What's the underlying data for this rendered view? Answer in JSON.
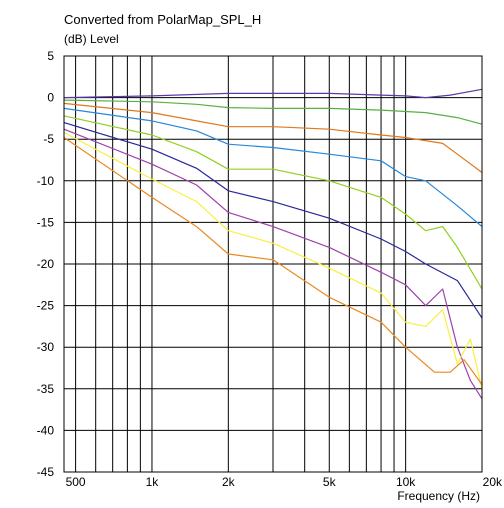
{
  "chart_data": {
    "type": "line",
    "title": "Converted from PolarMap_SPL_H",
    "ylabel": "(dB)  Level",
    "xlabel": "Frequency  (Hz)",
    "x_scale": "log",
    "xlim": [
      450,
      20000
    ],
    "ylim": [
      -45,
      5
    ],
    "y_ticks": [
      5,
      0,
      -5,
      -10,
      -15,
      -20,
      -25,
      -30,
      -35,
      -40,
      -45
    ],
    "x_tick_labels": [
      {
        "value": 500,
        "label": "500"
      },
      {
        "value": 1000,
        "label": "1k"
      },
      {
        "value": 2000,
        "label": "2k"
      },
      {
        "value": 5000,
        "label": "5k"
      },
      {
        "value": 10000,
        "label": "10k"
      },
      {
        "value": 20000,
        "label": "20k"
      }
    ],
    "grid": true,
    "series": [
      {
        "color": "#5a3aa8",
        "points": [
          [
            450,
            0
          ],
          [
            1000,
            0.2
          ],
          [
            2000,
            0.5
          ],
          [
            5000,
            0.5
          ],
          [
            8000,
            0.3
          ],
          [
            10000,
            0.2
          ],
          [
            12000,
            0
          ],
          [
            15000,
            0.3
          ],
          [
            20000,
            1
          ]
        ]
      },
      {
        "color": "#58b040",
        "points": [
          [
            450,
            -0.3
          ],
          [
            1000,
            -0.5
          ],
          [
            1500,
            -0.8
          ],
          [
            2000,
            -1.2
          ],
          [
            3000,
            -1.3
          ],
          [
            5000,
            -1.3
          ],
          [
            8000,
            -1.5
          ],
          [
            12000,
            -1.8
          ],
          [
            16000,
            -2.4
          ],
          [
            20000,
            -3.2
          ]
        ]
      },
      {
        "color": "#e07820",
        "points": [
          [
            450,
            -0.7
          ],
          [
            1000,
            -1.8
          ],
          [
            1500,
            -2.8
          ],
          [
            2000,
            -3.5
          ],
          [
            3000,
            -3.5
          ],
          [
            5000,
            -3.8
          ],
          [
            8000,
            -4.5
          ],
          [
            10000,
            -4.8
          ],
          [
            14000,
            -5.5
          ],
          [
            16000,
            -6.8
          ],
          [
            20000,
            -9
          ]
        ]
      },
      {
        "color": "#2888d8",
        "points": [
          [
            450,
            -1.3
          ],
          [
            1000,
            -2.8
          ],
          [
            1500,
            -4
          ],
          [
            2000,
            -5.6
          ],
          [
            3000,
            -6
          ],
          [
            5000,
            -6.8
          ],
          [
            8000,
            -7.6
          ],
          [
            10000,
            -9.5
          ],
          [
            12000,
            -10
          ],
          [
            16000,
            -13
          ],
          [
            20000,
            -15.5
          ]
        ]
      },
      {
        "color": "#90d020",
        "points": [
          [
            450,
            -2.2
          ],
          [
            1000,
            -4.5
          ],
          [
            1500,
            -6.5
          ],
          [
            2000,
            -8.6
          ],
          [
            3000,
            -8.6
          ],
          [
            5000,
            -10
          ],
          [
            8000,
            -12
          ],
          [
            10000,
            -14
          ],
          [
            12000,
            -16
          ],
          [
            14000,
            -15.5
          ],
          [
            16000,
            -18
          ],
          [
            20000,
            -23
          ]
        ]
      },
      {
        "color": "#282898",
        "points": [
          [
            450,
            -3
          ],
          [
            1000,
            -6.2
          ],
          [
            1500,
            -8.5
          ],
          [
            2000,
            -11.2
          ],
          [
            3000,
            -12.5
          ],
          [
            5000,
            -14.5
          ],
          [
            8000,
            -17
          ],
          [
            10000,
            -18.5
          ],
          [
            12000,
            -20
          ],
          [
            16000,
            -22
          ],
          [
            20000,
            -26.5
          ]
        ]
      },
      {
        "color": "#a040b0",
        "points": [
          [
            450,
            -3.8
          ],
          [
            1000,
            -8
          ],
          [
            1500,
            -10.5
          ],
          [
            2000,
            -13.8
          ],
          [
            3000,
            -15.5
          ],
          [
            5000,
            -18
          ],
          [
            8000,
            -21
          ],
          [
            10000,
            -22.5
          ],
          [
            12000,
            -25
          ],
          [
            14000,
            -23
          ],
          [
            16000,
            -30
          ],
          [
            18000,
            -34
          ],
          [
            20000,
            -36.2
          ]
        ]
      },
      {
        "color": "#f8f040",
        "points": [
          [
            450,
            -4.2
          ],
          [
            1000,
            -9.8
          ],
          [
            1500,
            -12.5
          ],
          [
            2000,
            -16
          ],
          [
            3000,
            -17.5
          ],
          [
            5000,
            -20.5
          ],
          [
            8000,
            -23.5
          ],
          [
            10000,
            -27
          ],
          [
            12000,
            -27.5
          ],
          [
            14000,
            -25.5
          ],
          [
            16000,
            -32
          ],
          [
            18000,
            -29
          ],
          [
            20000,
            -35
          ]
        ]
      },
      {
        "color": "#e88a20",
        "points": [
          [
            450,
            -4.8
          ],
          [
            1000,
            -12
          ],
          [
            1500,
            -15.5
          ],
          [
            2000,
            -18.8
          ],
          [
            3000,
            -19.5
          ],
          [
            5000,
            -24
          ],
          [
            8000,
            -27
          ],
          [
            10000,
            -30
          ],
          [
            13000,
            -33
          ],
          [
            15000,
            -33
          ],
          [
            17000,
            -31.5
          ],
          [
            20000,
            -34.5
          ]
        ]
      }
    ]
  }
}
